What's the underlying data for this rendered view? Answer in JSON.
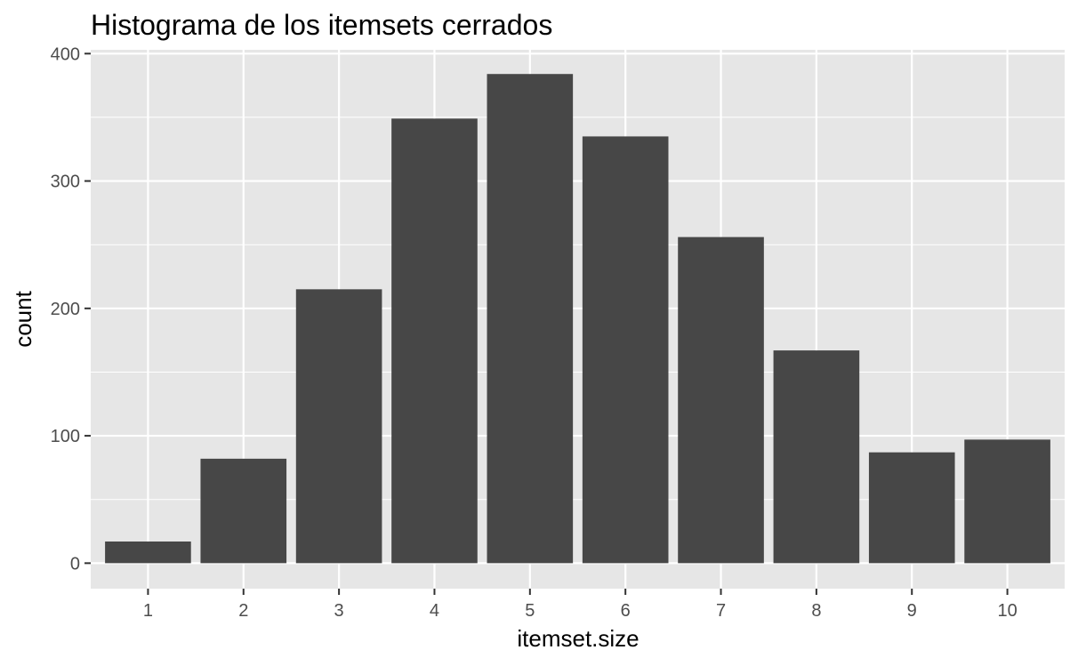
{
  "chart_data": {
    "type": "bar",
    "title": "Histograma de los itemsets cerrados",
    "xlabel": "itemset.size",
    "ylabel": "count",
    "categories": [
      "1",
      "2",
      "3",
      "4",
      "5",
      "6",
      "7",
      "8",
      "9",
      "10"
    ],
    "values": [
      17,
      82,
      215,
      349,
      384,
      335,
      256,
      167,
      87,
      97
    ],
    "ylim": [
      -20,
      403
    ],
    "yticks": [
      "0",
      "100",
      "200",
      "300",
      "400"
    ],
    "grid": true,
    "legend": "none",
    "colors": {
      "bar": "#474747",
      "panel": "#e6e6e6",
      "grid": "#ffffff",
      "tick": "#333333"
    }
  }
}
